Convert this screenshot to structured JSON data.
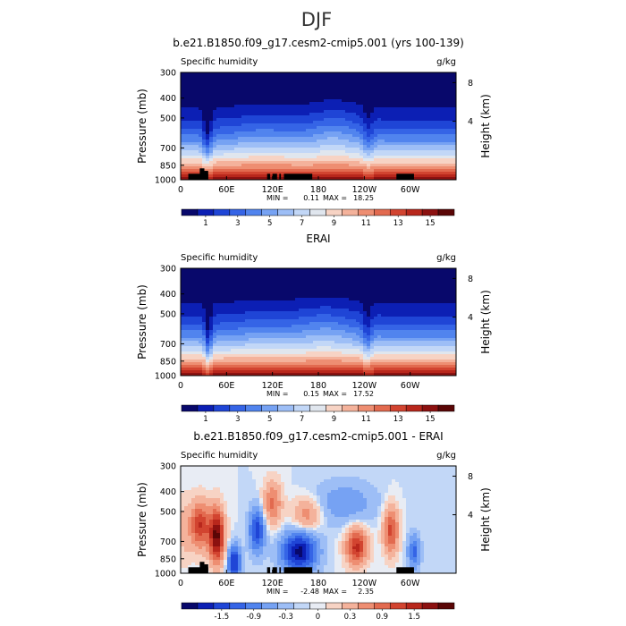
{
  "figure_title": "DJF",
  "chart_data": [
    {
      "type": "heatmap",
      "title": "b.e21.B1850.f09_g17.cesm2-cmip5.001 (yrs 100-139)",
      "field_label": "Specific humidity",
      "units": "g/kg",
      "xlabel": "",
      "ylabel": "Pressure (mb)",
      "y2label": "Height (km)",
      "x_ticks": [
        "0",
        "60E",
        "120E",
        "180",
        "120W",
        "60W"
      ],
      "y_ticks": [
        "300",
        "400",
        "500",
        "700",
        "850",
        "1000"
      ],
      "y2_ticks": [
        "8",
        "4"
      ],
      "min_label": "MIN =",
      "min_value": "0.11",
      "max_label": "MAX =",
      "max_value": "18.25",
      "colorbar_labels": [
        "1",
        "3",
        "5",
        "7",
        "9",
        "11",
        "13",
        "15"
      ],
      "colorbar_levels": [
        0,
        1,
        2,
        3,
        4,
        5,
        6,
        7,
        8,
        9,
        10,
        11,
        12,
        13,
        14,
        15,
        16
      ],
      "colors": [
        "#08086b",
        "#0c1fb4",
        "#1f45d6",
        "#3564e6",
        "#5184ee",
        "#76a2f3",
        "#9dbef6",
        "#c2d7f7",
        "#e0e6ee",
        "#f7d3c4",
        "#f4b29b",
        "#ee8e72",
        "#e26a4f",
        "#d24430",
        "#b8271c",
        "#8c1110",
        "#5a0606"
      ],
      "value_range": [
        0,
        16
      ],
      "surface_value": 16
    },
    {
      "type": "heatmap",
      "title": "ERAI",
      "field_label": "Specific humidity",
      "units": "g/kg",
      "xlabel": "",
      "ylabel": "Pressure (mb)",
      "y2label": "Height (km)",
      "x_ticks": [
        "0",
        "60E",
        "120E",
        "180",
        "120W",
        "60W"
      ],
      "y_ticks": [
        "300",
        "400",
        "500",
        "700",
        "850",
        "1000"
      ],
      "y2_ticks": [
        "8",
        "4"
      ],
      "min_label": "MIN =",
      "min_value": "0.15",
      "max_label": "MAX =",
      "max_value": "17.52",
      "colorbar_labels": [
        "1",
        "3",
        "5",
        "7",
        "9",
        "11",
        "13",
        "15"
      ],
      "colorbar_levels": [
        0,
        1,
        2,
        3,
        4,
        5,
        6,
        7,
        8,
        9,
        10,
        11,
        12,
        13,
        14,
        15,
        16
      ],
      "colors": [
        "#08086b",
        "#0c1fb4",
        "#1f45d6",
        "#3564e6",
        "#5184ee",
        "#76a2f3",
        "#9dbef6",
        "#c2d7f7",
        "#e0e6ee",
        "#f7d3c4",
        "#f4b29b",
        "#ee8e72",
        "#e26a4f",
        "#d24430",
        "#b8271c",
        "#8c1110",
        "#5a0606"
      ],
      "value_range": [
        0,
        16
      ],
      "surface_value": 16
    },
    {
      "type": "heatmap",
      "title": "b.e21.B1850.f09_g17.cesm2-cmip5.001 - ERAI",
      "field_label": "Specific humidity",
      "units": "g/kg",
      "xlabel": "",
      "ylabel": "Pressure (mb)",
      "y2label": "Height (km)",
      "x_ticks": [
        "0",
        "60E",
        "120E",
        "180",
        "120W",
        "60W"
      ],
      "y_ticks": [
        "300",
        "400",
        "500",
        "700",
        "850",
        "1000"
      ],
      "y2_ticks": [
        "8",
        "4"
      ],
      "min_label": "MIN =",
      "min_value": "-2.48",
      "max_label": "MAX =",
      "max_value": "2.35",
      "colorbar_labels": [
        "-1.5",
        "-0.9",
        "-0.3",
        "0",
        "0.3",
        "0.9",
        "1.5"
      ],
      "colorbar_levels": [
        -2.1,
        -1.8,
        -1.5,
        -1.2,
        -0.9,
        -0.6,
        -0.3,
        -0.1,
        0,
        0.1,
        0.3,
        0.6,
        0.9,
        1.2,
        1.5,
        1.8,
        2.1
      ],
      "colors": [
        "#08086b",
        "#0c1fb4",
        "#1f45d6",
        "#3564e6",
        "#5184ee",
        "#76a2f3",
        "#9dbef6",
        "#c2d7f7",
        "#e8ecf4",
        "#f7d3c4",
        "#f4b29b",
        "#ee8e72",
        "#e26a4f",
        "#d24430",
        "#b8271c",
        "#8c1110",
        "#5a0606"
      ],
      "value_range": [
        -2.5,
        2.5
      ],
      "surface_value": null
    }
  ],
  "terrain": [
    {
      "x0": 10,
      "x1": 36,
      "top_p": 935
    },
    {
      "x0": 25,
      "x1": 31,
      "top_p": 880
    },
    {
      "x0": 31,
      "x1": 36,
      "top_p": 905
    },
    {
      "x0": 113,
      "x1": 117,
      "top_p": 935
    },
    {
      "x0": 120,
      "x1": 126,
      "top_p": 935
    },
    {
      "x0": 129,
      "x1": 131,
      "top_p": 935
    },
    {
      "x0": 135,
      "x1": 172,
      "top_p": 935
    },
    {
      "x0": 282,
      "x1": 305,
      "top_p": 935
    }
  ]
}
